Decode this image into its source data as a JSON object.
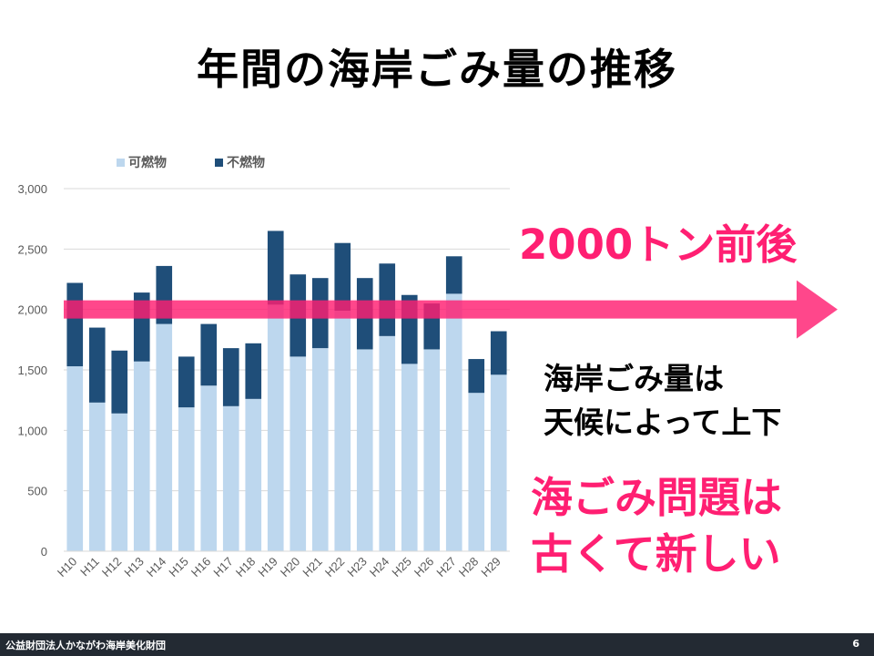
{
  "slide": {
    "title": "年間の海岸ごみ量の推移",
    "callout_amount": "2000トン前後",
    "note_line1": "海岸ごみ量は",
    "note_line2": "天候によって上下",
    "message_line1": "海ごみ問題は",
    "message_line2": "古くて新しい",
    "footer_org": "公益財団法人かながわ海岸美化財団",
    "page_number": "6"
  },
  "colors": {
    "combustible": "#bdd7ee",
    "noncombustible": "#1f4e79",
    "accent": "#ff1f72",
    "footer_bg": "#232a33"
  },
  "chart_data": {
    "type": "bar",
    "stacked": true,
    "categories": [
      "H10",
      "H11",
      "H12",
      "H13",
      "H14",
      "H15",
      "H16",
      "H17",
      "H18",
      "H19",
      "H20",
      "H21",
      "H22",
      "H23",
      "H24",
      "H25",
      "H26",
      "H27",
      "H28",
      "H29"
    ],
    "series": [
      {
        "name": "可燃物",
        "values": [
          1530,
          1230,
          1140,
          1570,
          1880,
          1190,
          1370,
          1200,
          1260,
          2040,
          1610,
          1680,
          1990,
          1670,
          1780,
          1550,
          1670,
          2130,
          1310,
          1460
        ]
      },
      {
        "name": "不燃物",
        "values": [
          690,
          620,
          520,
          570,
          480,
          420,
          510,
          480,
          460,
          610,
          680,
          580,
          560,
          590,
          600,
          570,
          380,
          310,
          280,
          360
        ]
      }
    ],
    "yticks": [
      "0",
      "500",
      "1,000",
      "1,500",
      "2,000",
      "2,500",
      "3,000"
    ],
    "ylim": [
      0,
      3000
    ],
    "legend_position": "top-left",
    "grid": true
  }
}
